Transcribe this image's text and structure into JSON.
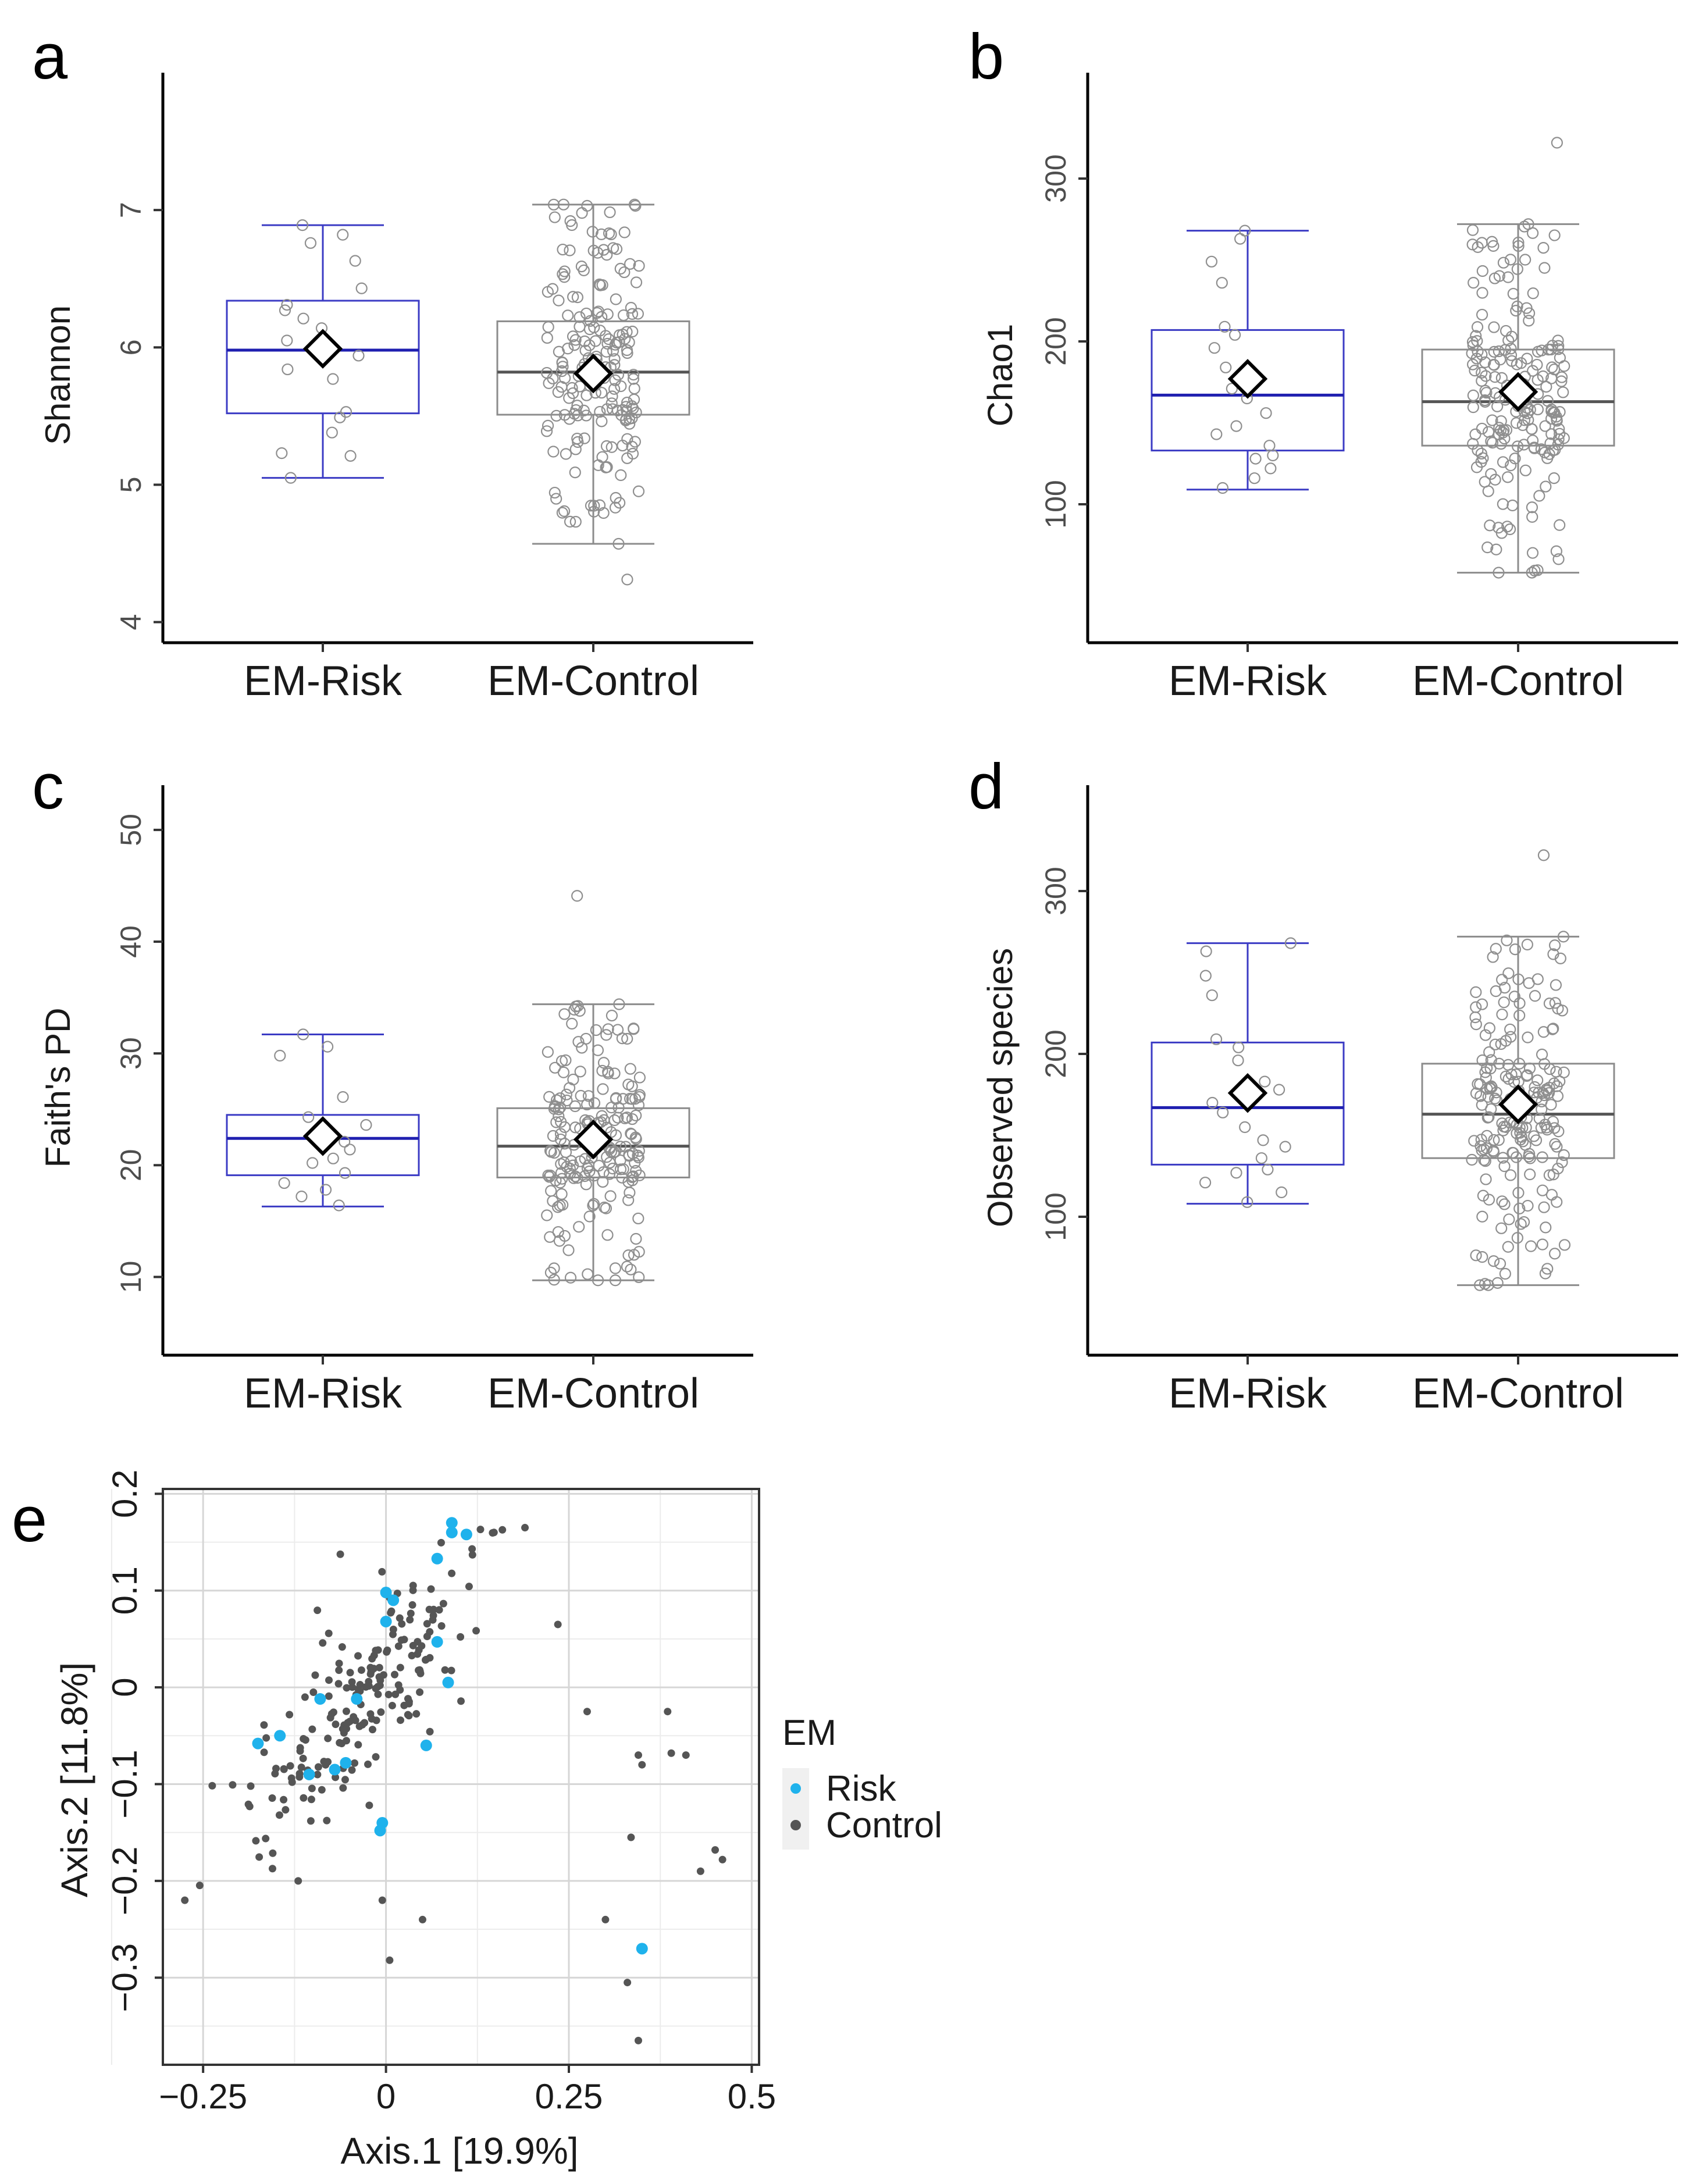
{
  "colors": {
    "risk_box": "#3b3bc4",
    "control_box": "#8c8c8c",
    "risk_point": "#1fb2ec",
    "control_point": "#555555",
    "axis": "#000000"
  },
  "chart_data": [
    {
      "panel": "a",
      "type": "box",
      "ylabel": "Shannon",
      "categories": [
        "EM-Risk",
        "EM-Control"
      ],
      "yticks": [
        4,
        5,
        6,
        7
      ],
      "ylim": [
        3.85,
        8.0
      ],
      "boxes": [
        {
          "name": "EM-Risk",
          "whisker_low": 5.05,
          "q1": 5.52,
          "median": 5.98,
          "q3": 6.34,
          "whisker_high": 6.89,
          "mean": 5.99,
          "points": [
            6.89,
            6.82,
            6.76,
            6.63,
            6.43,
            6.31,
            6.27,
            6.21,
            6.14,
            6.05,
            5.94,
            5.84,
            5.77,
            5.53,
            5.49,
            5.38,
            5.23,
            5.21,
            5.05
          ]
        },
        {
          "name": "EM-Control",
          "whisker_low": 4.57,
          "q1": 5.51,
          "median": 5.82,
          "q3": 6.19,
          "whisker_high": 7.04,
          "mean": 5.81,
          "n_points": 200,
          "point_min": 4.31,
          "point_max": 7.04
        }
      ]
    },
    {
      "panel": "b",
      "type": "box",
      "ylabel": "Chao1",
      "categories": [
        "EM-Risk",
        "EM-Control"
      ],
      "yticks": [
        100,
        200,
        300
      ],
      "ylim": [
        15,
        365
      ],
      "boxes": [
        {
          "name": "EM-Risk",
          "whisker_low": 109,
          "q1": 133,
          "median": 167,
          "q3": 207,
          "whisker_high": 268,
          "mean": 177,
          "points": [
            268,
            263,
            249,
            236,
            209,
            204,
            196,
            184,
            179,
            171,
            165,
            156,
            148,
            143,
            136,
            130,
            128,
            122,
            116,
            110
          ]
        },
        {
          "name": "EM-Control",
          "whisker_low": 58,
          "q1": 136,
          "median": 163,
          "q3": 195,
          "whisker_high": 272,
          "mean": 169,
          "n_points": 200,
          "point_min": 58,
          "point_max": 322
        }
      ]
    },
    {
      "panel": "c",
      "type": "box",
      "ylabel": "Faith's PD",
      "categories": [
        "EM-Risk",
        "EM-Control"
      ],
      "yticks": [
        10,
        20,
        30,
        40,
        50
      ],
      "ylim": [
        3.0,
        54.0
      ],
      "boxes": [
        {
          "name": "EM-Risk",
          "whisker_low": 16.3,
          "q1": 19.1,
          "median": 22.4,
          "q3": 24.5,
          "whisker_high": 31.7,
          "mean": 22.6,
          "points": [
            31.7,
            30.6,
            29.8,
            26.1,
            24.3,
            23.6,
            22.9,
            22.1,
            21.4,
            20.6,
            20.2,
            19.3,
            18.4,
            17.8,
            17.2,
            16.4
          ]
        },
        {
          "name": "EM-Control",
          "whisker_low": 9.7,
          "q1": 18.9,
          "median": 21.7,
          "q3": 25.1,
          "whisker_high": 34.4,
          "mean": 22.3,
          "n_points": 200,
          "point_min": 9.7,
          "point_max": 44.1
        }
      ]
    },
    {
      "panel": "d",
      "type": "box",
      "ylabel": "Observed species",
      "categories": [
        "EM-Risk",
        "EM-Control"
      ],
      "yticks": [
        100,
        200,
        300
      ],
      "ylim": [
        15,
        365
      ],
      "boxes": [
        {
          "name": "EM-Risk",
          "whisker_low": 108,
          "q1": 132,
          "median": 167,
          "q3": 207,
          "whisker_high": 268,
          "mean": 176,
          "points": [
            268,
            263,
            248,
            236,
            209,
            204,
            196,
            183,
            178,
            170,
            164,
            155,
            147,
            143,
            136,
            129,
            127,
            121,
            115,
            109
          ]
        },
        {
          "name": "EM-Control",
          "whisker_low": 58,
          "q1": 136,
          "median": 163,
          "q3": 194,
          "whisker_high": 272,
          "mean": 169,
          "n_points": 200,
          "point_min": 58,
          "point_max": 322
        }
      ]
    },
    {
      "panel": "e",
      "type": "scatter",
      "xlabel": "Axis.1   [19.9%]",
      "ylabel": "Axis.2   [11.8%]",
      "xlim": [
        -0.305,
        0.51
      ],
      "ylim": [
        -0.39,
        0.205
      ],
      "xticks": [
        -0.25,
        0,
        0.25,
        0.5
      ],
      "xtick_labels": [
        "−0.25",
        "0",
        "0.25",
        "0.5"
      ],
      "yticks": [
        -0.3,
        -0.2,
        -0.1,
        0,
        0.1,
        0.2
      ],
      "ytick_labels": [
        "−0.3",
        "−0.2",
        "−0.1",
        "0",
        "0.1",
        "0.2"
      ],
      "legend": {
        "title": "EM",
        "entries": [
          "Risk",
          "Control"
        ],
        "position": "right"
      },
      "series": [
        {
          "name": "Risk",
          "points": [
            [
              0.09,
              0.17
            ],
            [
              0.09,
              0.16
            ],
            [
              0.11,
              0.158
            ],
            [
              0.07,
              0.133
            ],
            [
              0.0,
              0.098
            ],
            [
              0.01,
              0.09
            ],
            [
              0.0,
              0.068
            ],
            [
              0.07,
              0.047
            ],
            [
              0.085,
              0.005
            ],
            [
              -0.09,
              -0.012
            ],
            [
              -0.04,
              -0.012
            ],
            [
              -0.175,
              -0.058
            ],
            [
              -0.145,
              -0.05
            ],
            [
              -0.055,
              -0.078
            ],
            [
              -0.07,
              -0.085
            ],
            [
              -0.105,
              -0.09
            ],
            [
              0.055,
              -0.06
            ],
            [
              -0.005,
              -0.14
            ],
            [
              -0.008,
              -0.148
            ],
            [
              0.35,
              -0.27
            ]
          ]
        },
        {
          "name": "Control",
          "n_points": 220,
          "outliers": [
            [
              -0.275,
              -0.22
            ],
            [
              0.345,
              -0.365
            ],
            [
              0.33,
              -0.305
            ],
            [
              0.46,
              -0.178
            ],
            [
              0.43,
              -0.19
            ],
            [
              0.45,
              -0.168
            ],
            [
              0.385,
              -0.025
            ],
            [
              0.39,
              -0.068
            ],
            [
              0.41,
              -0.07
            ],
            [
              0.19,
              0.165
            ],
            [
              0.235,
              0.065
            ],
            [
              0.275,
              -0.025
            ],
            [
              0.3,
              -0.24
            ],
            [
              0.335,
              -0.155
            ],
            [
              0.345,
              -0.07
            ],
            [
              0.35,
              -0.08
            ],
            [
              0.005,
              -0.282
            ],
            [
              -0.005,
              -0.22
            ],
            [
              0.05,
              -0.24
            ],
            [
              -0.12,
              -0.2
            ]
          ]
        }
      ]
    }
  ]
}
